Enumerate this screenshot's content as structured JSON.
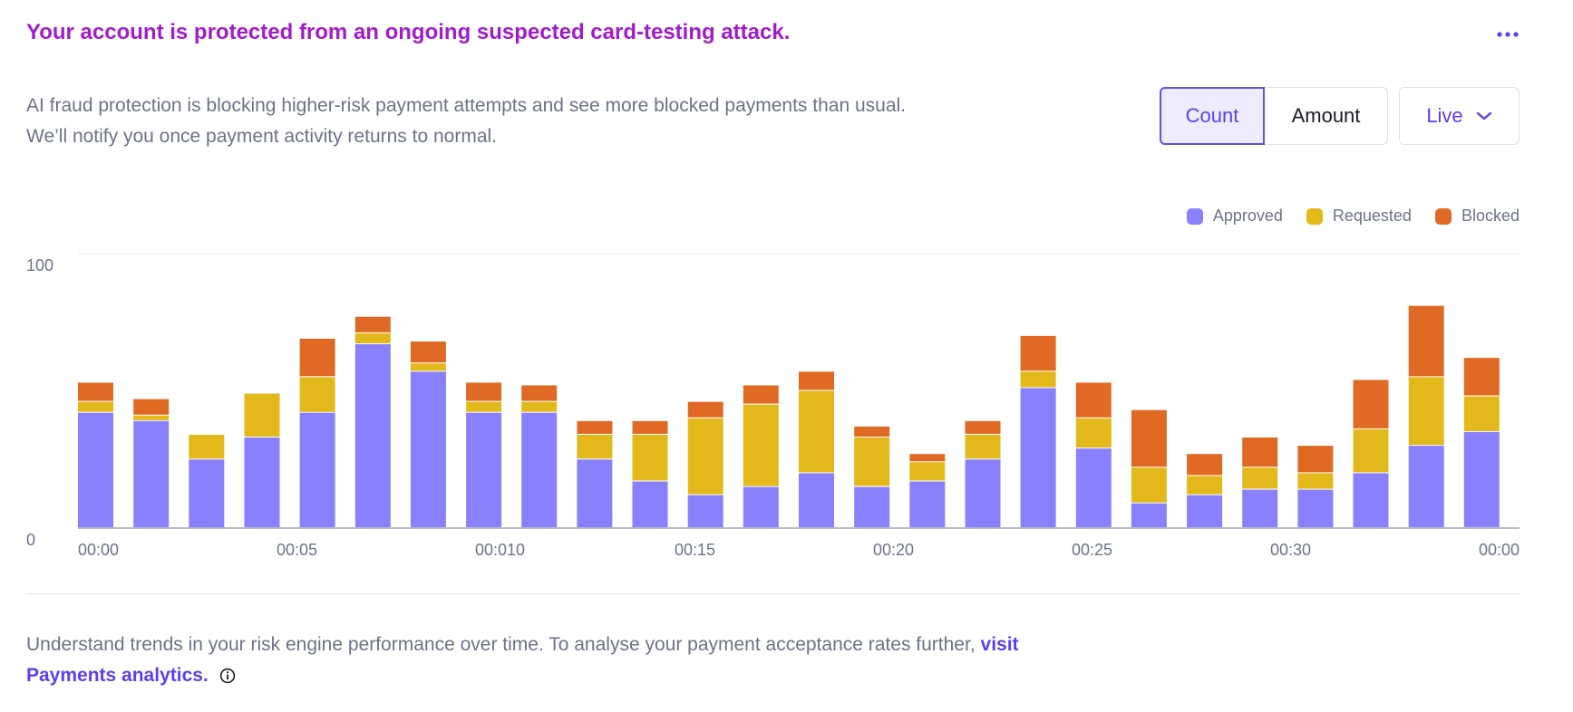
{
  "header": {
    "title": "Your account is protected from an ongoing suspected card-testing attack.",
    "more_icon": "more-horizontal-icon"
  },
  "description": {
    "line1": "AI fraud protection is blocking higher-risk payment attempts and see more blocked payments than usual.",
    "line2": "We’ll notify you once payment activity returns to normal."
  },
  "toggle": {
    "count_label": "Count",
    "amount_label": "Amount",
    "selected": "Count"
  },
  "range_select": {
    "label": "Live",
    "icon": "chevron-down-icon"
  },
  "colors": {
    "approved": "#8880fc",
    "requested": "#e3b81a",
    "blocked": "#e06a24",
    "title": "#a31bcc",
    "accent": "#5b3ff0"
  },
  "chart_data": {
    "type": "bar",
    "stacked": true,
    "ylim": [
      0,
      100
    ],
    "y_ticks": [
      "0",
      "100"
    ],
    "x_tick_labels": [
      "00:00",
      "00:05",
      "00:010",
      "00:15",
      "00:20",
      "00:25",
      "00:30",
      "00:00"
    ],
    "grid": true,
    "legend_position": "top-right",
    "series": [
      {
        "name": "Approved",
        "values": [
          42,
          39,
          25,
          33,
          42,
          67,
          57,
          42,
          42,
          25,
          17,
          12,
          15,
          20,
          15,
          17,
          25,
          51,
          29,
          9,
          12,
          14,
          14,
          20,
          30,
          35
        ]
      },
      {
        "name": "Requested",
        "values": [
          4,
          2,
          9,
          16,
          13,
          4,
          3,
          4,
          4,
          9,
          17,
          28,
          30,
          30,
          18,
          7,
          9,
          6,
          11,
          13,
          7,
          8,
          6,
          16,
          25,
          13
        ]
      },
      {
        "name": "Blocked",
        "values": [
          7,
          6,
          0,
          0,
          14,
          6,
          8,
          7,
          6,
          5,
          5,
          6,
          7,
          7,
          4,
          3,
          5,
          13,
          13,
          21,
          8,
          11,
          10,
          18,
          26,
          14
        ]
      }
    ]
  },
  "footer": {
    "text": "Understand trends in your risk engine performance over time. To analyse your payment acceptance rates further,",
    "link_text": "visit Payments analytics.",
    "info_icon": "info-circle-icon"
  }
}
